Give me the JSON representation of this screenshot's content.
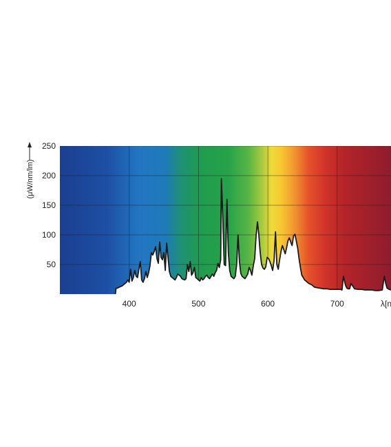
{
  "chart_data": {
    "type": "area",
    "title": "",
    "xlabel": "λ[nm]",
    "ylabel": "(μW/nm/lm)",
    "xlim": [
      300,
      780
    ],
    "ylim": [
      0,
      250
    ],
    "x_ticks": [
      400,
      500,
      600,
      700
    ],
    "y_ticks": [
      50,
      100,
      150,
      200,
      250
    ],
    "grid": true,
    "background": "visible-spectrum gradient",
    "series": [
      {
        "line_color": "#1a1a1a",
        "fill_color": "#ffffff",
        "x": [
          380,
          381,
          383,
          386,
          388,
          390,
          392,
          394,
          396,
          398,
          400,
          402,
          404,
          406,
          408,
          410,
          412,
          414,
          416,
          418,
          420,
          422,
          424,
          426,
          428,
          430,
          432,
          434,
          436,
          438,
          440,
          442,
          444,
          446,
          448,
          450,
          452,
          454,
          456,
          458,
          460,
          462,
          464,
          466,
          468,
          470,
          472,
          474,
          476,
          478,
          480,
          482,
          484,
          486,
          488,
          490,
          492,
          494,
          496,
          498,
          500,
          502,
          504,
          506,
          508,
          510,
          512,
          514,
          516,
          518,
          520,
          522,
          524,
          526,
          528,
          530,
          532,
          533,
          535,
          537,
          539,
          541,
          543,
          545,
          547,
          549,
          551,
          553,
          555,
          557,
          559,
          561,
          563,
          565,
          567,
          569,
          571,
          573,
          575,
          577,
          579,
          581,
          583,
          585,
          587,
          589,
          591,
          593,
          595,
          597,
          599,
          601,
          603,
          605,
          607,
          609,
          611,
          613,
          615,
          617,
          619,
          621,
          623,
          625,
          627,
          629,
          631,
          633,
          635,
          637,
          639,
          641,
          643,
          645,
          647,
          649,
          651,
          653,
          655,
          657,
          659,
          661,
          663,
          665,
          667,
          670,
          675,
          680,
          685,
          690,
          695,
          700,
          705,
          707,
          709,
          712,
          714,
          716,
          718,
          720,
          725,
          730,
          735,
          740,
          745,
          750,
          755,
          760,
          765,
          768,
          770,
          772,
          775,
          778,
          780
        ],
        "y": [
          0,
          10,
          10,
          12,
          13,
          14,
          16,
          18,
          20,
          24,
          20,
          42,
          22,
          28,
          40,
          30,
          28,
          42,
          55,
          24,
          20,
          26,
          38,
          28,
          36,
          48,
          70,
          66,
          72,
          80,
          60,
          52,
          88,
          62,
          58,
          70,
          40,
          86,
          62,
          38,
          30,
          28,
          26,
          24,
          28,
          34,
          32,
          30,
          26,
          25,
          24,
          26,
          50,
          38,
          55,
          32,
          36,
          45,
          28,
          26,
          24,
          22,
          28,
          24,
          26,
          30,
          32,
          28,
          26,
          30,
          34,
          30,
          36,
          40,
          52,
          45,
          58,
          195,
          130,
          50,
          48,
          160,
          70,
          40,
          30,
          28,
          26,
          30,
          50,
          100,
          55,
          35,
          30,
          28,
          26,
          30,
          34,
          45,
          40,
          32,
          48,
          60,
          98,
          122,
          100,
          70,
          50,
          44,
          42,
          46,
          62,
          60,
          55,
          48,
          40,
          58,
          105,
          50,
          42,
          58,
          72,
          82,
          75,
          68,
          78,
          90,
          95,
          88,
          82,
          98,
          101,
          90,
          78,
          60,
          45,
          32,
          28,
          24,
          22,
          20,
          18,
          17,
          16,
          14,
          12,
          11,
          10,
          9,
          9,
          8,
          8,
          8,
          8,
          7,
          30,
          15,
          10,
          9,
          9,
          18,
          9,
          8,
          8,
          7,
          7,
          7,
          6,
          6,
          7,
          30,
          18,
          10,
          8,
          7,
          7
        ]
      }
    ]
  }
}
